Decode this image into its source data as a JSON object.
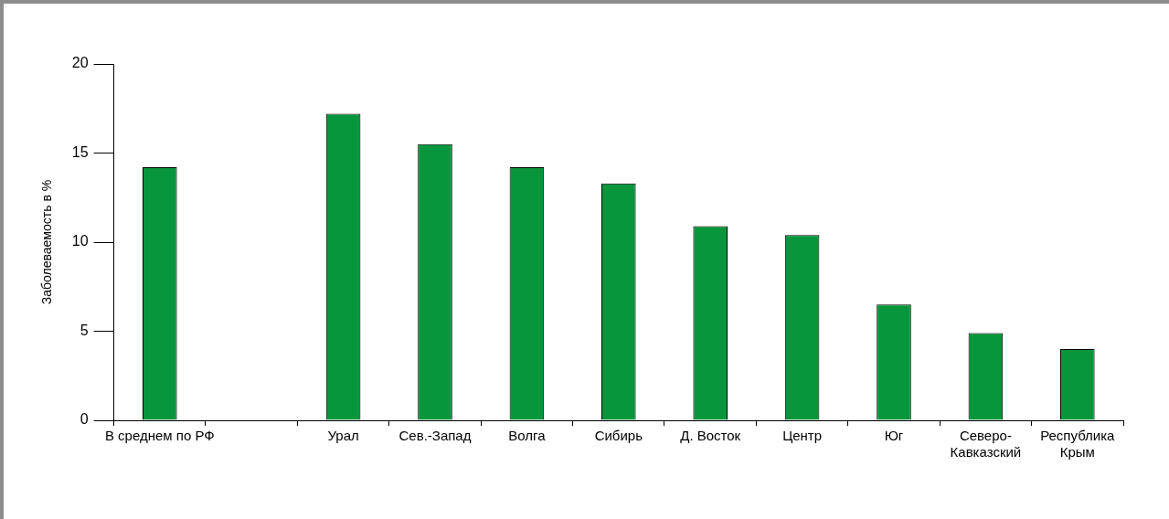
{
  "chart_data": {
    "type": "bar",
    "ylabel": "Заболеваемость в %",
    "categories": [
      "В среднем по РФ",
      null,
      "Урал",
      "Сев.-Запад",
      "Волга",
      "Сибирь",
      "Д. Восток",
      "Центр",
      "Юг",
      "Северо-\nКавказский",
      "Республика\nКрым"
    ],
    "values": [
      14.2,
      null,
      17.2,
      15.5,
      14.2,
      13.3,
      10.9,
      10.4,
      6.5,
      4.9,
      4.0
    ],
    "color": "#08963c",
    "ylim": [
      0,
      20
    ],
    "yticks": [
      0,
      5,
      10,
      15,
      20
    ],
    "grid": false
  }
}
